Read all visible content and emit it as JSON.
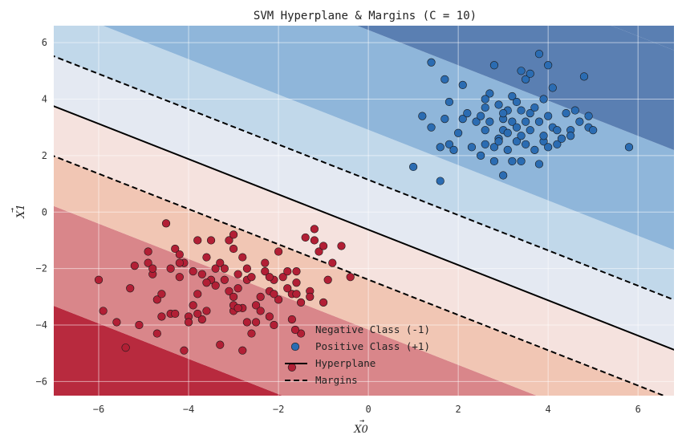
{
  "chart_data": {
    "type": "scatter",
    "title": "SVM Hyperplane & Margins (C = 10)",
    "xlabel": "X0",
    "ylabel": "X1",
    "xlim": [
      -7.0,
      6.8
    ],
    "ylim": [
      -6.5,
      6.6
    ],
    "xticks": [
      -6,
      -4,
      -2,
      0,
      2,
      4,
      6
    ],
    "yticks": [
      -6,
      -4,
      -2,
      0,
      2,
      4,
      6
    ],
    "xtick_labels": [
      "−6",
      "−4",
      "−2",
      "0",
      "2",
      "4",
      "6"
    ],
    "ytick_labels": [
      "−6",
      "−4",
      "−2",
      "0",
      "2",
      "4",
      "6"
    ],
    "grid": true,
    "legend_position": "bottom-center",
    "decision_function": {
      "w": [
        0.3536,
        0.5657
      ],
      "b": 0.3536,
      "hyperplane": "0.3536*x + 0.5657*y + 0.3536 = 0",
      "margin_levels": [
        -1,
        1
      ]
    },
    "background_levels": [
      -6,
      -4,
      -2,
      -1,
      0,
      1,
      2,
      4,
      6
    ],
    "background_colors": [
      "#b82a3e",
      "#d9868a",
      "#f1c6b4",
      "#f5e2de",
      "#e4e9f2",
      "#c1d8ea",
      "#8fb6da",
      "#5a7fb2"
    ],
    "colors": {
      "negative": "#b21f35",
      "positive": "#2b6cb2",
      "hyperplane": "#000000",
      "margins": "#000000"
    },
    "legend": [
      {
        "label": "Negative Class (-1)",
        "kind": "marker",
        "color": "#b21f35"
      },
      {
        "label": "Positive Class (+1)",
        "kind": "marker",
        "color": "#2b6cb2"
      },
      {
        "label": "Hyperplane",
        "kind": "line-solid",
        "color": "#000000"
      },
      {
        "label": "Margins",
        "kind": "line-dashed",
        "color": "#000000"
      }
    ],
    "series": [
      {
        "name": "Negative Class (-1)",
        "points": [
          [
            -6.0,
            -2.4
          ],
          [
            -5.9,
            -3.5
          ],
          [
            -5.6,
            -3.9
          ],
          [
            -5.4,
            -4.8
          ],
          [
            -5.3,
            -2.7
          ],
          [
            -5.1,
            -4.0
          ],
          [
            -5.2,
            -1.9
          ],
          [
            -4.9,
            -1.4
          ],
          [
            -4.9,
            -1.8
          ],
          [
            -4.8,
            -2.2
          ],
          [
            -4.7,
            -3.1
          ],
          [
            -4.7,
            -4.3
          ],
          [
            -4.6,
            -2.9
          ],
          [
            -4.6,
            -3.7
          ],
          [
            -4.5,
            -0.4
          ],
          [
            -4.4,
            -3.6
          ],
          [
            -4.4,
            -2.0
          ],
          [
            -4.3,
            -1.3
          ],
          [
            -4.3,
            -3.6
          ],
          [
            -4.2,
            -1.5
          ],
          [
            -4.2,
            -2.3
          ],
          [
            -4.1,
            -1.8
          ],
          [
            -4.1,
            -4.9
          ],
          [
            -4.0,
            -3.7
          ],
          [
            -4.0,
            -3.9
          ],
          [
            -3.9,
            -2.1
          ],
          [
            -3.9,
            -3.3
          ],
          [
            -3.8,
            -2.9
          ],
          [
            -3.8,
            -1.0
          ],
          [
            -3.7,
            -2.2
          ],
          [
            -3.7,
            -3.8
          ],
          [
            -3.6,
            -3.5
          ],
          [
            -3.6,
            -1.6
          ],
          [
            -3.5,
            -2.4
          ],
          [
            -3.5,
            -1.0
          ],
          [
            -3.4,
            -2.6
          ],
          [
            -3.4,
            -2.0
          ],
          [
            -3.3,
            -1.8
          ],
          [
            -3.3,
            -4.7
          ],
          [
            -3.2,
            -2.4
          ],
          [
            -3.2,
            -2.0
          ],
          [
            -3.1,
            -2.8
          ],
          [
            -3.1,
            -1.0
          ],
          [
            -3.0,
            -1.3
          ],
          [
            -3.0,
            -3.0
          ],
          [
            -3.0,
            -3.5
          ],
          [
            -2.9,
            -2.2
          ],
          [
            -2.9,
            -2.7
          ],
          [
            -2.8,
            -1.6
          ],
          [
            -2.8,
            -3.4
          ],
          [
            -2.8,
            -4.9
          ],
          [
            -2.7,
            -2.4
          ],
          [
            -2.7,
            -2.0
          ],
          [
            -2.6,
            -4.3
          ],
          [
            -2.5,
            -3.9
          ],
          [
            -2.5,
            -3.3
          ],
          [
            -2.4,
            -3.0
          ],
          [
            -2.4,
            -3.5
          ],
          [
            -2.3,
            -2.1
          ],
          [
            -2.3,
            -1.8
          ],
          [
            -2.2,
            -2.8
          ],
          [
            -2.2,
            -3.7
          ],
          [
            -2.1,
            -4.0
          ],
          [
            -2.1,
            -2.4
          ],
          [
            -2.0,
            -1.4
          ],
          [
            -2.0,
            -3.1
          ],
          [
            -1.9,
            -2.3
          ],
          [
            -1.8,
            -2.1
          ],
          [
            -1.7,
            -2.9
          ],
          [
            -1.7,
            -3.8
          ],
          [
            -1.6,
            -2.5
          ],
          [
            -1.6,
            -2.1
          ],
          [
            -1.5,
            -4.3
          ],
          [
            -1.5,
            -3.2
          ],
          [
            -1.4,
            -0.9
          ],
          [
            -1.3,
            -2.8
          ],
          [
            -1.3,
            -3.0
          ],
          [
            -1.2,
            -0.6
          ],
          [
            -1.1,
            -1.4
          ],
          [
            -1.0,
            -3.2
          ],
          [
            -0.9,
            -2.4
          ],
          [
            -0.8,
            -1.8
          ],
          [
            -0.6,
            -1.2
          ],
          [
            -0.4,
            -2.3
          ],
          [
            -1.7,
            -5.5
          ],
          [
            -1.0,
            -1.2
          ],
          [
            -3.0,
            -0.8
          ],
          [
            -2.6,
            -2.3
          ],
          [
            -3.8,
            -3.6
          ],
          [
            -2.7,
            -3.9
          ],
          [
            -2.2,
            -2.3
          ],
          [
            -1.8,
            -2.7
          ],
          [
            -4.2,
            -1.8
          ],
          [
            -3.0,
            -3.3
          ],
          [
            -2.9,
            -3.4
          ],
          [
            -1.2,
            -1.0
          ],
          [
            -1.6,
            -2.9
          ],
          [
            -2.1,
            -2.9
          ],
          [
            -3.6,
            -2.5
          ],
          [
            -4.8,
            -2.0
          ]
        ]
      },
      {
        "name": "Positive Class (+1)",
        "points": [
          [
            1.0,
            1.6
          ],
          [
            1.2,
            3.4
          ],
          [
            1.4,
            3.0
          ],
          [
            1.4,
            5.3
          ],
          [
            1.6,
            1.1
          ],
          [
            1.6,
            2.3
          ],
          [
            1.7,
            3.3
          ],
          [
            1.7,
            4.7
          ],
          [
            1.8,
            2.4
          ],
          [
            1.8,
            3.9
          ],
          [
            1.9,
            2.2
          ],
          [
            2.0,
            2.8
          ],
          [
            2.1,
            4.5
          ],
          [
            2.1,
            3.3
          ],
          [
            2.2,
            3.5
          ],
          [
            2.3,
            2.3
          ],
          [
            2.4,
            3.2
          ],
          [
            2.5,
            3.4
          ],
          [
            2.5,
            2.0
          ],
          [
            2.6,
            3.7
          ],
          [
            2.6,
            2.4
          ],
          [
            2.6,
            2.9
          ],
          [
            2.7,
            3.2
          ],
          [
            2.7,
            4.2
          ],
          [
            2.8,
            1.8
          ],
          [
            2.8,
            2.3
          ],
          [
            2.8,
            5.2
          ],
          [
            2.9,
            3.8
          ],
          [
            2.9,
            2.6
          ],
          [
            3.0,
            3.3
          ],
          [
            3.0,
            1.3
          ],
          [
            3.0,
            2.9
          ],
          [
            3.1,
            2.2
          ],
          [
            3.1,
            3.6
          ],
          [
            3.1,
            2.8
          ],
          [
            3.2,
            4.1
          ],
          [
            3.2,
            1.8
          ],
          [
            3.2,
            3.2
          ],
          [
            3.3,
            3.0
          ],
          [
            3.3,
            2.5
          ],
          [
            3.3,
            3.9
          ],
          [
            3.4,
            2.7
          ],
          [
            3.4,
            5.0
          ],
          [
            3.4,
            1.8
          ],
          [
            3.5,
            2.4
          ],
          [
            3.5,
            3.2
          ],
          [
            3.5,
            4.7
          ],
          [
            3.6,
            3.5
          ],
          [
            3.6,
            2.9
          ],
          [
            3.6,
            4.9
          ],
          [
            3.7,
            3.7
          ],
          [
            3.7,
            2.2
          ],
          [
            3.8,
            1.7
          ],
          [
            3.8,
            3.2
          ],
          [
            3.8,
            5.6
          ],
          [
            3.9,
            2.5
          ],
          [
            3.9,
            4.0
          ],
          [
            3.9,
            2.7
          ],
          [
            4.0,
            3.4
          ],
          [
            4.0,
            2.3
          ],
          [
            4.0,
            5.2
          ],
          [
            4.1,
            3.0
          ],
          [
            4.1,
            4.4
          ],
          [
            4.2,
            2.9
          ],
          [
            4.2,
            2.4
          ],
          [
            4.3,
            2.6
          ],
          [
            4.4,
            3.5
          ],
          [
            4.5,
            2.9
          ],
          [
            4.5,
            2.7
          ],
          [
            4.6,
            3.6
          ],
          [
            4.7,
            3.2
          ],
          [
            4.8,
            4.8
          ],
          [
            4.9,
            3.0
          ],
          [
            4.9,
            3.4
          ],
          [
            5.0,
            2.9
          ],
          [
            5.8,
            2.3
          ],
          [
            2.6,
            4.0
          ],
          [
            3.0,
            3.5
          ],
          [
            3.4,
            3.6
          ],
          [
            2.9,
            2.5
          ]
        ]
      }
    ]
  }
}
